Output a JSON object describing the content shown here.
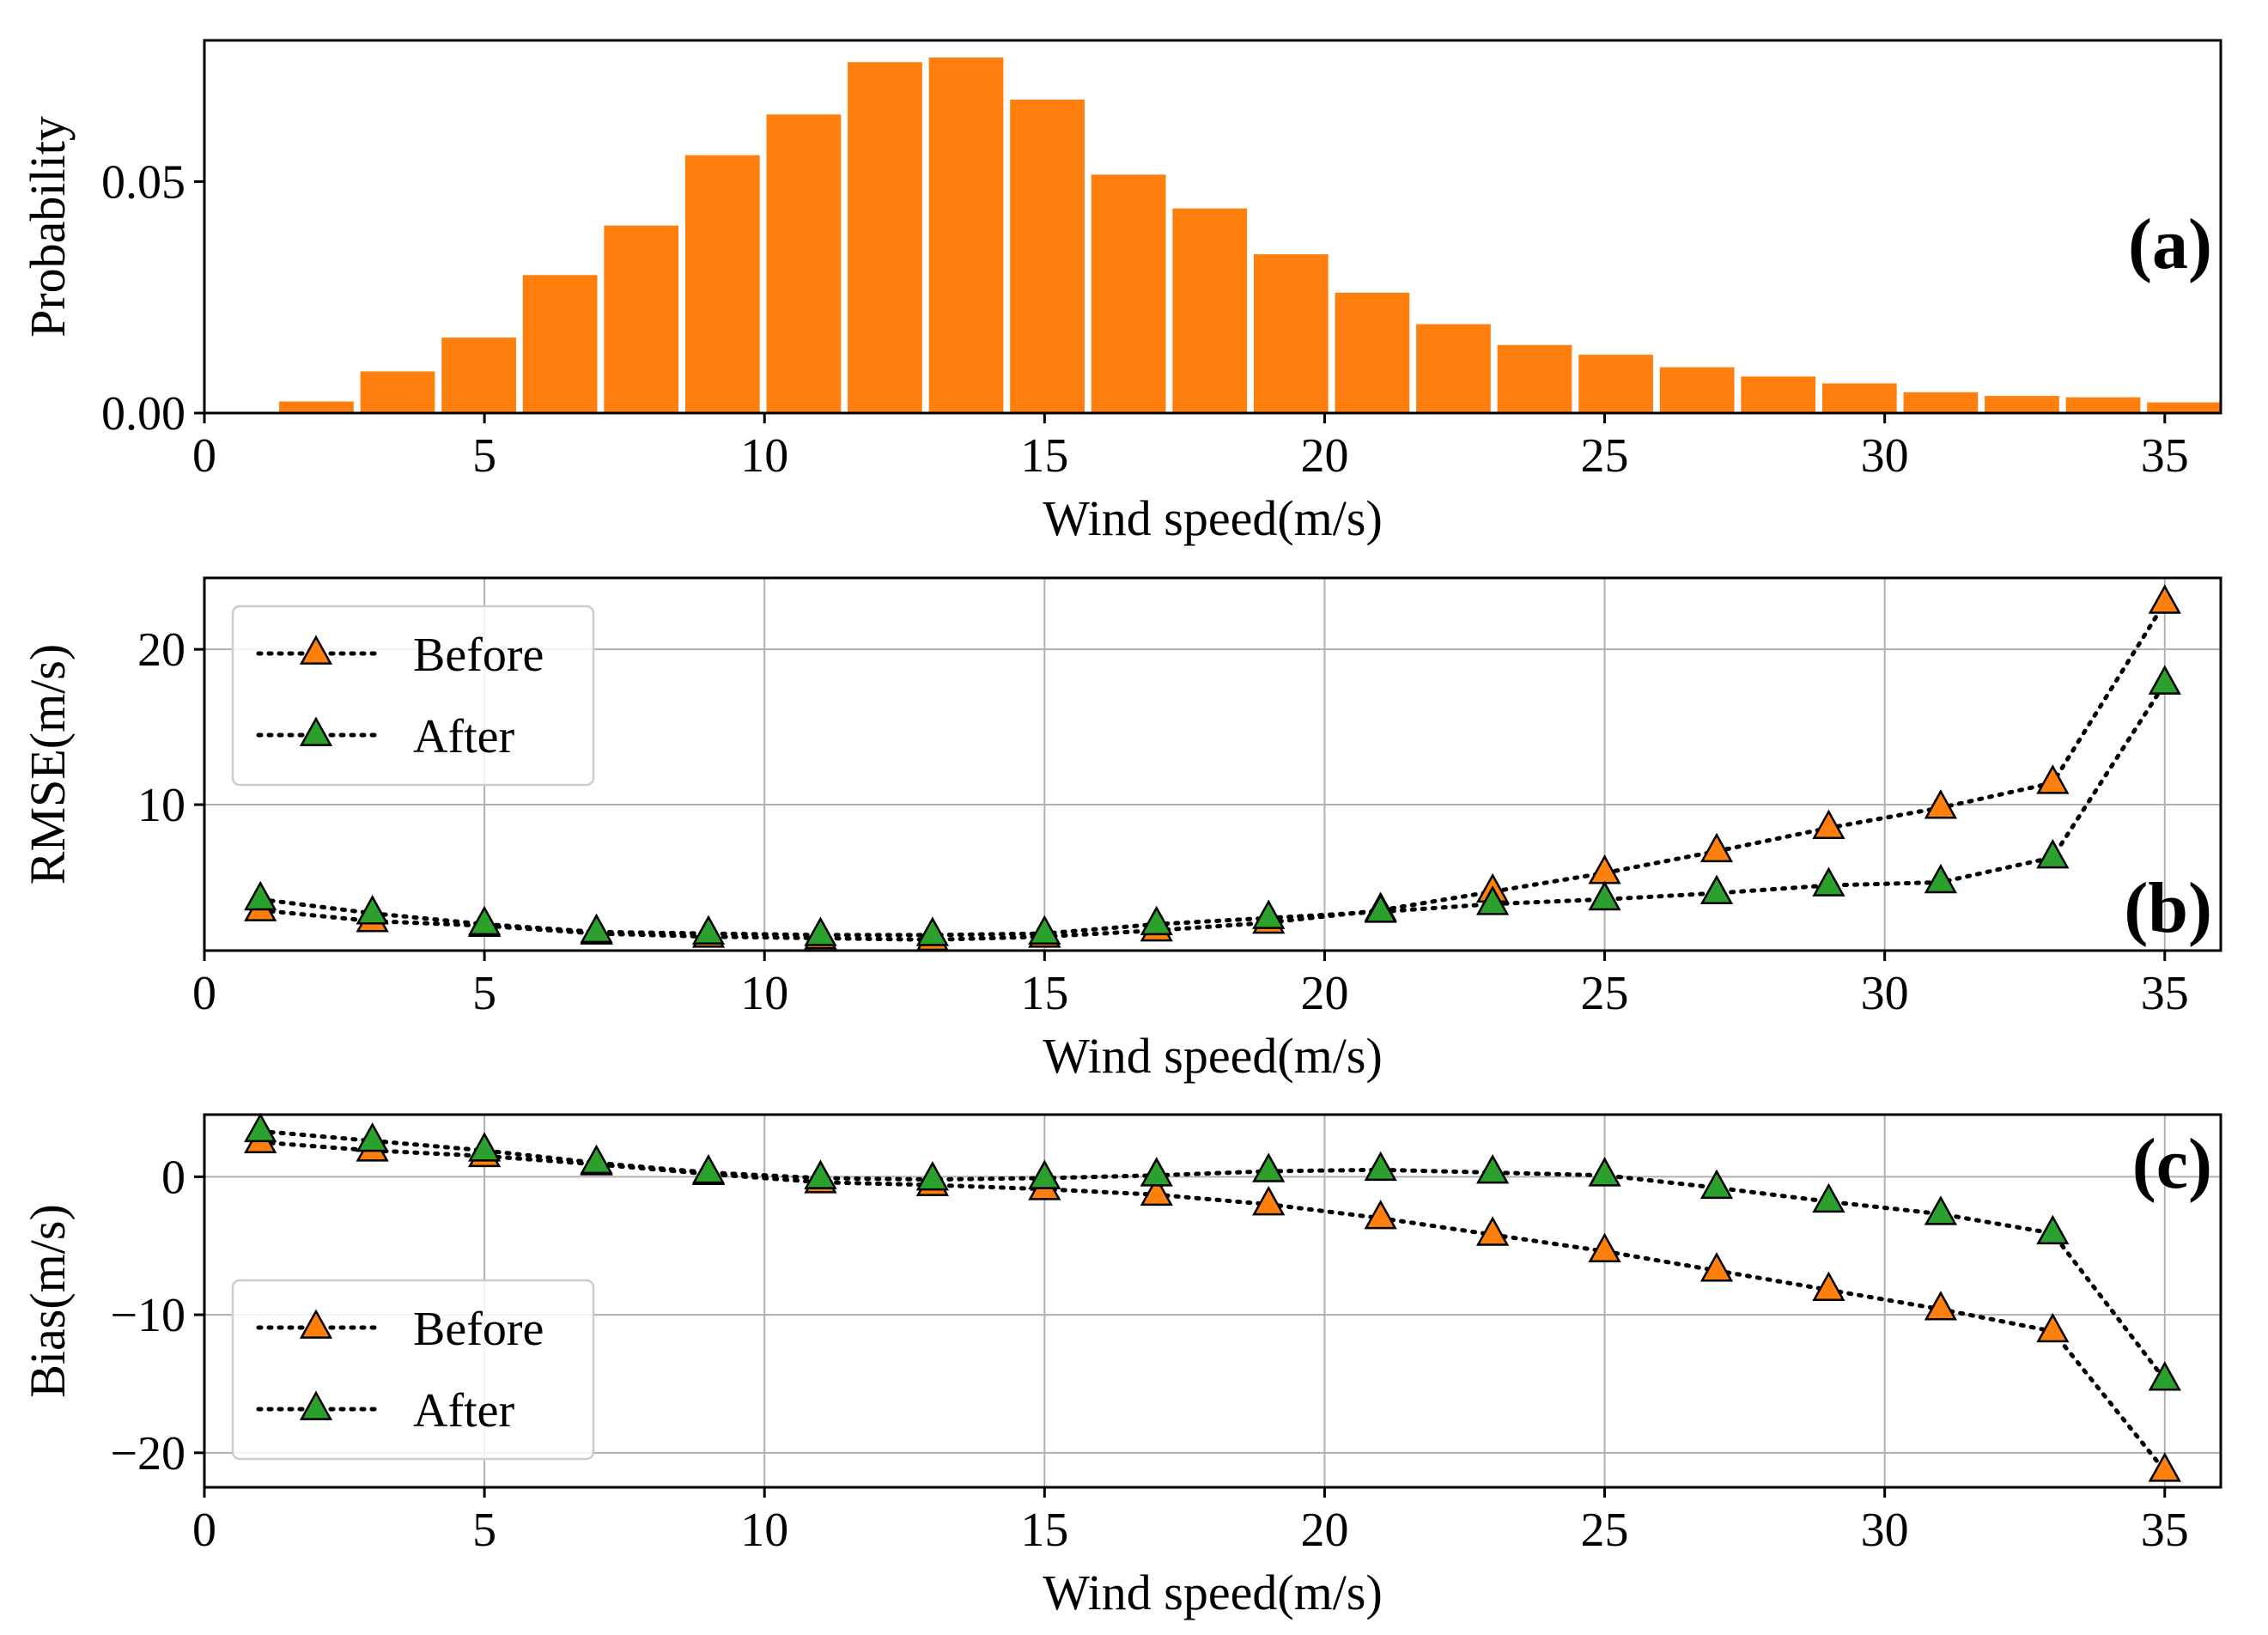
{
  "colors": {
    "bar": "#ff7f0e",
    "before": "#ff7f0e",
    "after": "#2ca02c",
    "grid": "#b0b0b0",
    "line": "#000000"
  },
  "chart_data": [
    {
      "id": "a",
      "type": "bar",
      "panel_label": "(a)",
      "xlabel": "Wind speed(m/s)",
      "ylabel": "Probability",
      "xlim": [
        0,
        36
      ],
      "ylim": [
        0,
        0.0805
      ],
      "grid": false,
      "xticks": [
        0,
        5,
        10,
        15,
        20,
        25,
        30,
        35
      ],
      "xtick_labels": [
        "0",
        "5",
        "10",
        "15",
        "20",
        "25",
        "30",
        "35"
      ],
      "yticks": [
        0,
        0.05
      ],
      "ytick_labels": [
        "0.00",
        "0.05"
      ],
      "bin_width": 1.45,
      "x": [
        2,
        3.45,
        4.9,
        6.35,
        7.8,
        9.25,
        10.7,
        12.15,
        13.6,
        15.05,
        16.5,
        17.95,
        19.4,
        20.85,
        22.3,
        23.75,
        25.2,
        26.65,
        28.1,
        29.55,
        31,
        32.45,
        33.9,
        35.35
      ],
      "values": [
        0.0025,
        0.009,
        0.0163,
        0.0298,
        0.0405,
        0.0557,
        0.0645,
        0.0758,
        0.0768,
        0.0677,
        0.0515,
        0.0442,
        0.0343,
        0.026,
        0.0192,
        0.0147,
        0.0126,
        0.0099,
        0.0079,
        0.0064,
        0.0045,
        0.0037,
        0.0034,
        0.0023
      ]
    },
    {
      "id": "b",
      "type": "line",
      "panel_label": "(b)",
      "xlabel": "Wind speed(m/s)",
      "ylabel": "RMSE(m/s)",
      "xlim": [
        0,
        36
      ],
      "ylim": [
        0.6,
        24.6
      ],
      "grid": true,
      "xticks": [
        0,
        5,
        10,
        15,
        20,
        25,
        30,
        35
      ],
      "xtick_labels": [
        "0",
        "5",
        "10",
        "15",
        "20",
        "25",
        "30",
        "35"
      ],
      "yticks": [
        10,
        20
      ],
      "ytick_labels": [
        "10",
        "20"
      ],
      "legend": {
        "position": "upper-left",
        "entries": [
          "Before",
          "After"
        ]
      },
      "x": [
        1,
        3,
        5,
        7,
        9,
        11,
        13,
        15,
        17,
        19,
        21,
        23,
        25,
        27,
        29,
        31,
        33,
        35
      ],
      "series": [
        {
          "name": "Before",
          "color_key": "before",
          "values": [
            3.2,
            2.5,
            2.2,
            1.7,
            1.5,
            1.4,
            1.3,
            1.5,
            1.9,
            2.4,
            3.2,
            4.4,
            5.6,
            7.0,
            8.5,
            9.8,
            11.4,
            23.0
          ]
        },
        {
          "name": "After",
          "color_key": "after",
          "values": [
            3.9,
            3.0,
            2.3,
            1.8,
            1.7,
            1.6,
            1.6,
            1.7,
            2.3,
            2.7,
            3.1,
            3.6,
            3.9,
            4.3,
            4.8,
            5.0,
            6.6,
            17.8
          ]
        }
      ]
    },
    {
      "id": "c",
      "type": "line",
      "panel_label": "(c)",
      "xlabel": "Wind speed(m/s)",
      "ylabel": "Bias(m/s)",
      "xlim": [
        0,
        36
      ],
      "ylim": [
        -22.5,
        4.5
      ],
      "grid": true,
      "xticks": [
        0,
        5,
        10,
        15,
        20,
        25,
        30,
        35
      ],
      "xtick_labels": [
        "0",
        "5",
        "10",
        "15",
        "20",
        "25",
        "30",
        "35"
      ],
      "yticks": [
        -20,
        -10,
        0
      ],
      "ytick_labels": [
        "−20",
        "−10",
        "0"
      ],
      "legend": {
        "position": "lower-left",
        "entries": [
          "Before",
          "After"
        ]
      },
      "x": [
        1,
        3,
        5,
        7,
        9,
        11,
        13,
        15,
        17,
        19,
        21,
        23,
        25,
        27,
        29,
        31,
        33,
        35
      ],
      "series": [
        {
          "name": "Before",
          "color_key": "before",
          "values": [
            2.5,
            1.9,
            1.5,
            0.9,
            0.2,
            -0.4,
            -0.6,
            -0.9,
            -1.3,
            -2.0,
            -3.0,
            -4.2,
            -5.4,
            -6.8,
            -8.2,
            -9.6,
            -11.2,
            -21.3
          ]
        },
        {
          "name": "After",
          "color_key": "after",
          "values": [
            3.3,
            2.6,
            1.9,
            1.0,
            0.3,
            -0.1,
            -0.2,
            -0.1,
            0.1,
            0.4,
            0.5,
            0.3,
            0.1,
            -0.8,
            -1.8,
            -2.7,
            -4.1,
            -14.7
          ]
        }
      ]
    }
  ]
}
